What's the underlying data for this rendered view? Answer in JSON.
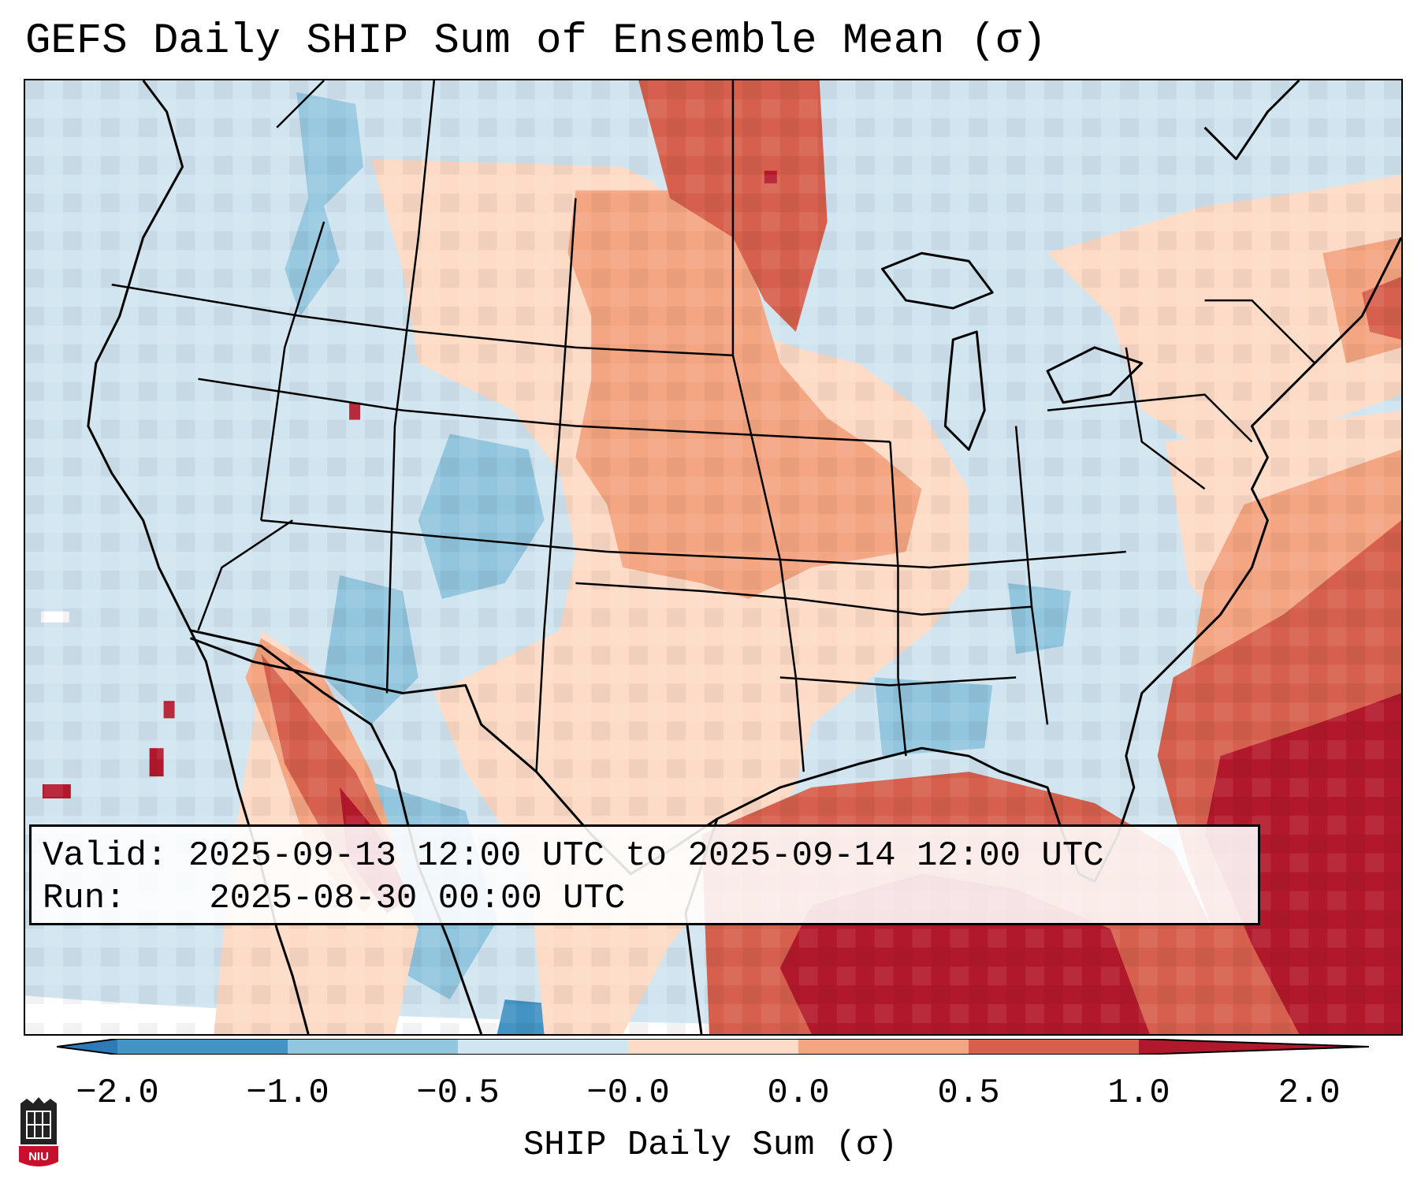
{
  "title": "GEFS Daily SHIP Sum of Ensemble Mean (σ)",
  "info": {
    "valid_label": "Valid:",
    "valid_value": "2025-09-13 12:00 UTC to 2025-09-14 12:00 UTC",
    "run_label": "Run:",
    "run_value": "2025-08-30 00:00 UTC"
  },
  "colorbar": {
    "label": "SHIP Daily Sum (σ)",
    "ticks": [
      "−2.0",
      "−1.0",
      "−0.5",
      "−0.0",
      "0.0",
      "0.5",
      "1.0",
      "2.0"
    ],
    "colors": [
      "#2c7bb6",
      "#4393c3",
      "#92c5de",
      "#d1e5f0",
      "#fddbc7",
      "#f4a582",
      "#d6604d",
      "#b2182b"
    ],
    "extend": "both"
  },
  "map": {
    "region": "Continental United States",
    "background_color": "#d1e5f0"
  },
  "logo": {
    "text": "NIU",
    "color": "#c8102e"
  }
}
